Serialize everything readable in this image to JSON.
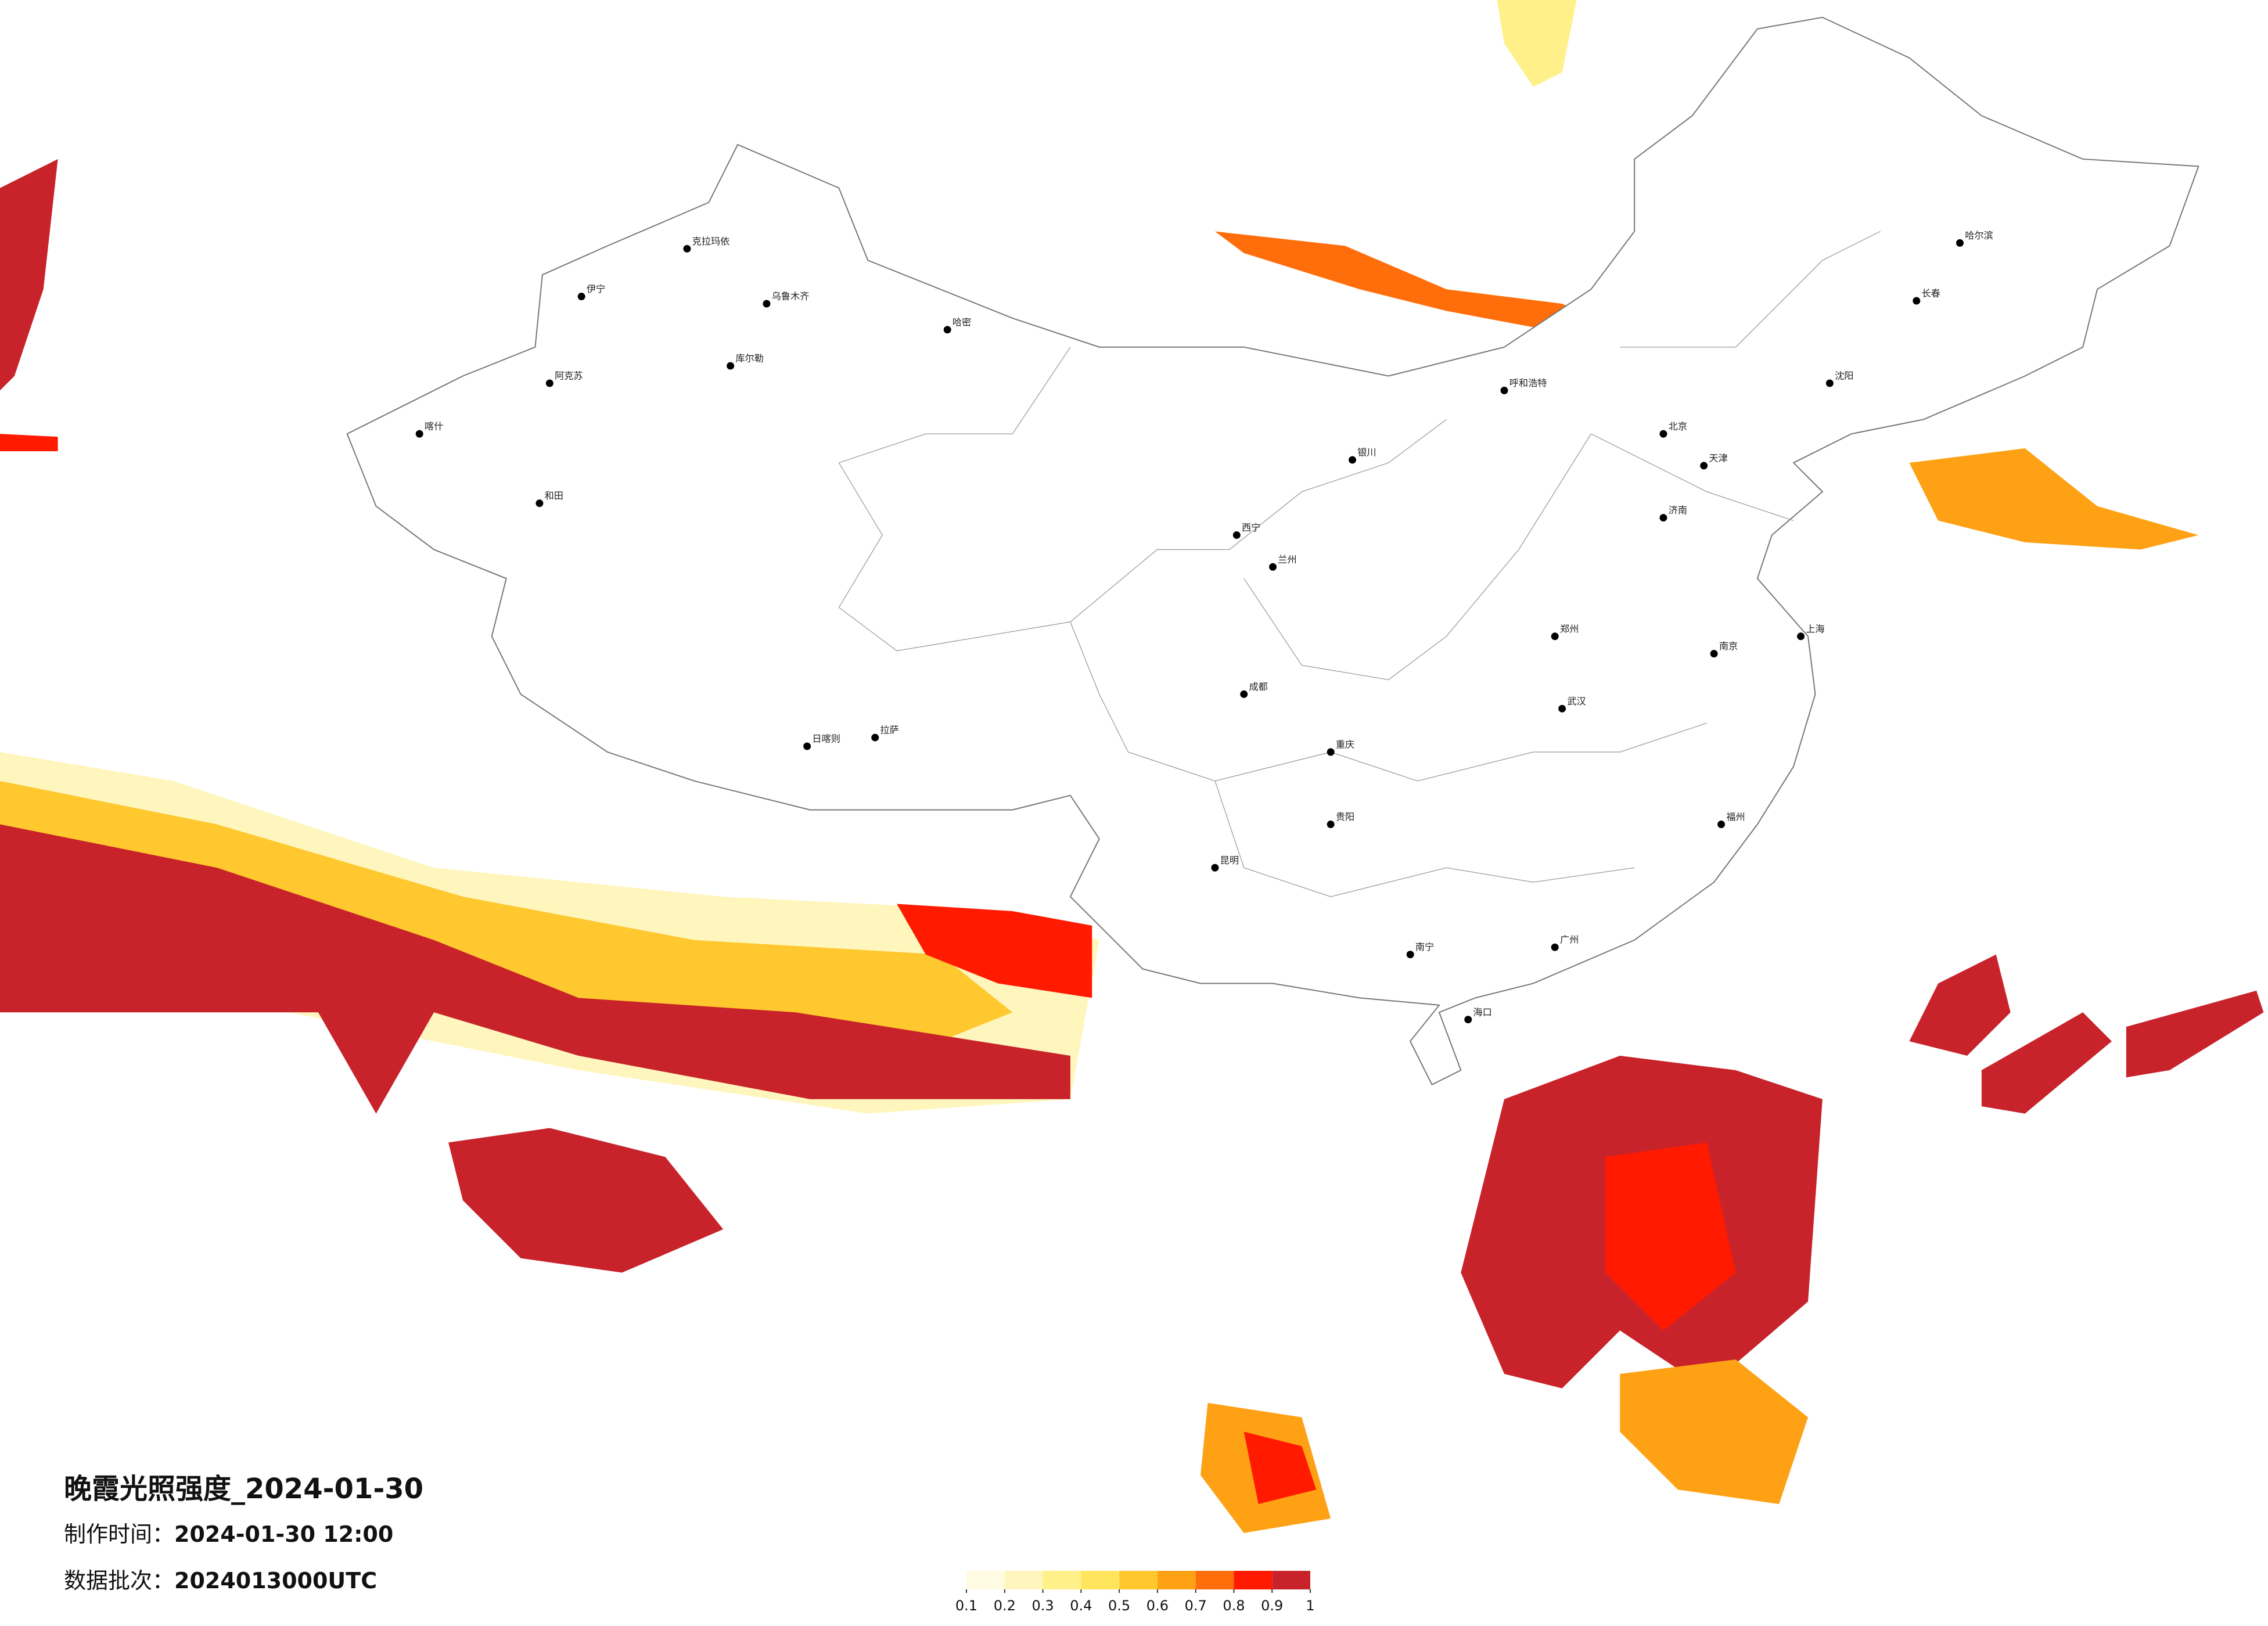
{
  "title": "晚霞光照强度_2024-01-30",
  "made_time": {
    "label": "制作时间：",
    "value": "2024-01-30 12:00"
  },
  "batch": {
    "label": "数据批次：",
    "value": "2024013000UTC"
  },
  "legend": {
    "colors": [
      "#fffbe3",
      "#fff6bd",
      "#fff08a",
      "#ffe45e",
      "#ffc82e",
      "#ffa114",
      "#ff6e0a",
      "#ff1a00",
      "#c8232b"
    ],
    "ticks": [
      0.1,
      0.2,
      0.3,
      0.4,
      0.5,
      0.6,
      0.7,
      0.8,
      0.9,
      1
    ]
  },
  "cities": [
    {
      "name": "克拉玛依"
    },
    {
      "name": "乌鲁木齐"
    },
    {
      "name": "伊宁"
    },
    {
      "name": "阿克苏"
    },
    {
      "name": "喀什"
    },
    {
      "name": "和田"
    },
    {
      "name": "哈密"
    },
    {
      "name": "库尔勒"
    },
    {
      "name": "拉萨"
    },
    {
      "name": "日喀则"
    },
    {
      "name": "西宁"
    },
    {
      "name": "兰州"
    },
    {
      "name": "银川"
    },
    {
      "name": "呼和浩特"
    },
    {
      "name": "北京"
    },
    {
      "name": "天津"
    },
    {
      "name": "哈尔滨"
    },
    {
      "name": "长春"
    },
    {
      "name": "沈阳"
    },
    {
      "name": "济南"
    },
    {
      "name": "郑州"
    },
    {
      "name": "武汉"
    },
    {
      "name": "成都"
    },
    {
      "name": "重庆"
    },
    {
      "name": "昆明"
    },
    {
      "name": "贵阳"
    },
    {
      "name": "南宁"
    },
    {
      "name": "广州"
    },
    {
      "name": "福州"
    },
    {
      "name": "上海"
    },
    {
      "name": "南京"
    },
    {
      "name": "海口"
    }
  ]
}
